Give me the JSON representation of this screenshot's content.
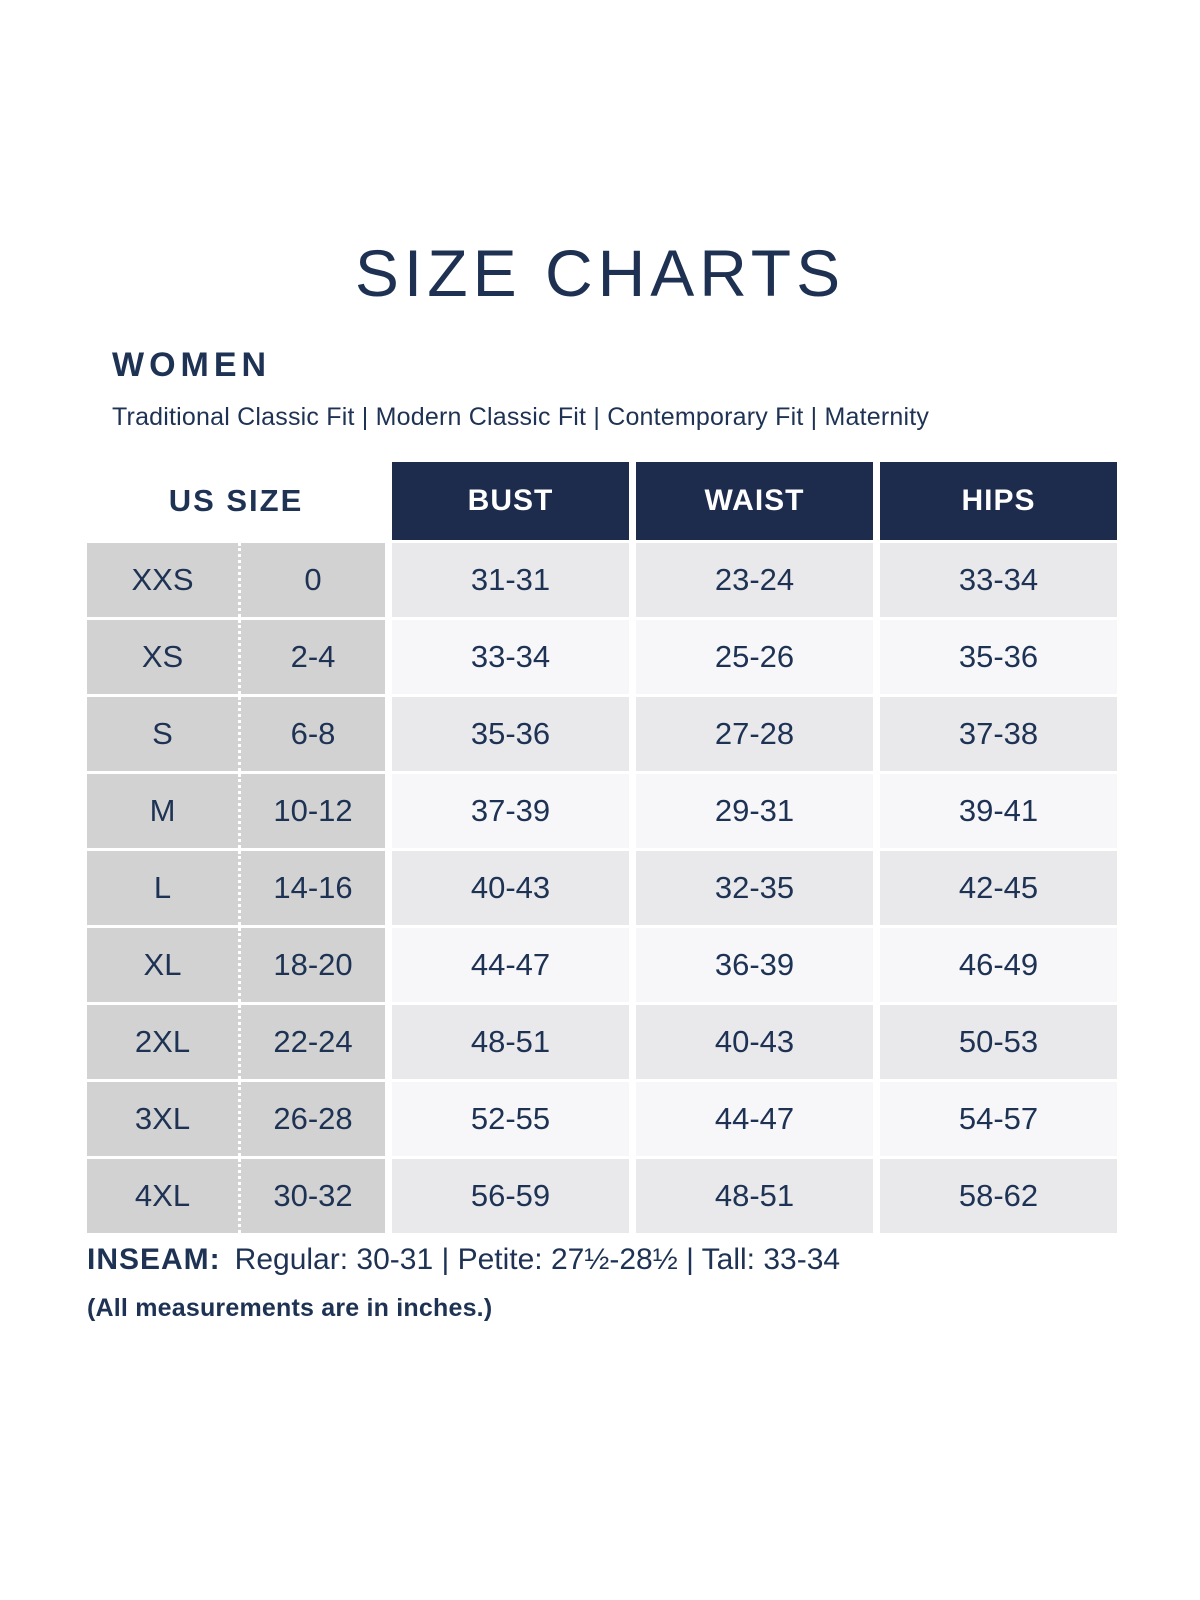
{
  "title": "SIZE CHARTS",
  "section": {
    "heading": "WOMEN",
    "fits": "Traditional Classic Fit  |  Modern Classic Fit  |  Contemporary Fit  |  Maternity"
  },
  "chart_data": {
    "type": "table",
    "title": "SIZE CHARTS",
    "group": "WOMEN",
    "columns": [
      "US SIZE",
      "BUST",
      "WAIST",
      "HIPS"
    ],
    "rows": [
      {
        "size": "XXS",
        "us": "0",
        "bust": "31-31",
        "waist": "23-24",
        "hips": "33-34"
      },
      {
        "size": "XS",
        "us": "2-4",
        "bust": "33-34",
        "waist": "25-26",
        "hips": "35-36"
      },
      {
        "size": "S",
        "us": "6-8",
        "bust": "35-36",
        "waist": "27-28",
        "hips": "37-38"
      },
      {
        "size": "M",
        "us": "10-12",
        "bust": "37-39",
        "waist": "29-31",
        "hips": "39-41"
      },
      {
        "size": "L",
        "us": "14-16",
        "bust": "40-43",
        "waist": "32-35",
        "hips": "42-45"
      },
      {
        "size": "XL",
        "us": "18-20",
        "bust": "44-47",
        "waist": "36-39",
        "hips": "46-49"
      },
      {
        "size": "2XL",
        "us": "22-24",
        "bust": "48-51",
        "waist": "40-43",
        "hips": "50-53"
      },
      {
        "size": "3XL",
        "us": "26-28",
        "bust": "52-55",
        "waist": "44-47",
        "hips": "54-57"
      },
      {
        "size": "4XL",
        "us": "30-32",
        "bust": "56-59",
        "waist": "48-51",
        "hips": "58-62"
      }
    ],
    "units": "inches"
  },
  "footer": {
    "inseam_label": "INSEAM:",
    "inseam_values": "Regular: 30-31  |  Petite: 27½-28½  |  Tall: 33-34",
    "note": "(All measurements are in inches.)"
  },
  "colors": {
    "header_navy": "#1d2b4d",
    "text_navy": "#1e3254",
    "size_column_gray": "#d2d2d2",
    "row_shade_light_gray": "#e9e9ec",
    "row_shade_near_white": "#f7f7f9"
  }
}
